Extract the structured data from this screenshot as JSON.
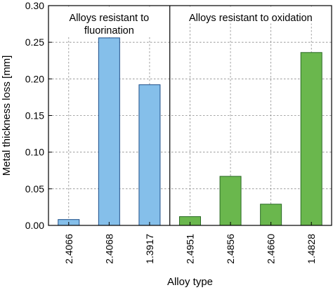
{
  "chart_data": {
    "type": "bar",
    "title": "",
    "xlabel": "Alloy type",
    "ylabel": "Metal thickness loss [mm]",
    "ylim": [
      0,
      0.3
    ],
    "yticks": [
      "0.00",
      "0.05",
      "0.10",
      "0.15",
      "0.20",
      "0.25",
      "0.30"
    ],
    "grid": true,
    "categories": [
      "2.4066",
      "2.4068",
      "1.3917",
      "2.4951",
      "2.4856",
      "2.4660",
      "1.4828"
    ],
    "values": [
      0.008,
      0.256,
      0.192,
      0.012,
      0.067,
      0.029,
      0.236
    ],
    "colors": [
      "#85bfea",
      "#85bfea",
      "#85bfea",
      "#6ab74d",
      "#6ab74d",
      "#6ab74d",
      "#6ab74d"
    ],
    "edge_colors": [
      "#1f4f8a",
      "#1f4f8a",
      "#1f4f8a",
      "#2a6a25",
      "#2a6a25",
      "#2a6a25",
      "#2a6a25"
    ],
    "groups": [
      {
        "label_lines": [
          "Alloys resistant to",
          "fluorination"
        ],
        "categories": [
          "2.4066",
          "2.4068",
          "1.3917"
        ]
      },
      {
        "label_lines": [
          "Alloys resistant to oxidation"
        ],
        "categories": [
          "2.4951",
          "2.4856",
          "2.4660",
          "1.4828"
        ]
      }
    ]
  }
}
